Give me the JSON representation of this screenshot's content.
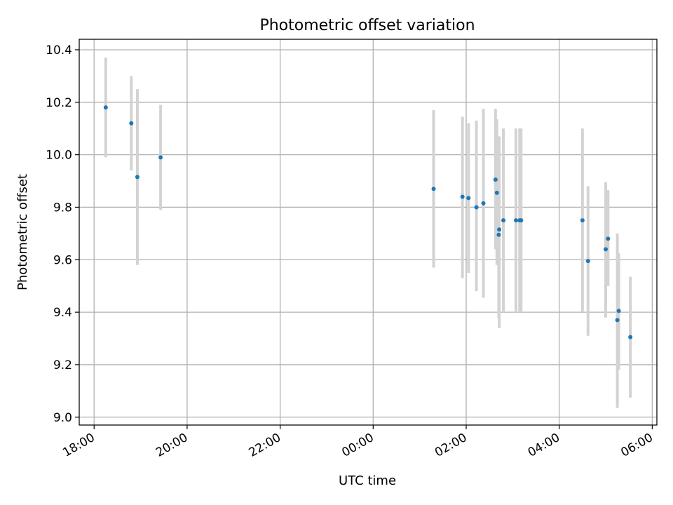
{
  "chart_data": {
    "type": "scatter",
    "title": "Photometric offset variation",
    "xlabel": "UTC time",
    "ylabel": "Photometric offset",
    "x_tick_labels": [
      "18:00",
      "20:00",
      "22:00",
      "00:00",
      "02:00",
      "04:00",
      "06:00"
    ],
    "x_ticks_hours": [
      0,
      2,
      4,
      6,
      8,
      10,
      12
    ],
    "xlim_hours": [
      -0.32,
      12.1
    ],
    "y_ticks": [
      9.0,
      9.2,
      9.4,
      9.6,
      9.8,
      10.0,
      10.2,
      10.4
    ],
    "y_tick_labels": [
      "9.0",
      "9.2",
      "9.4",
      "9.6",
      "9.8",
      "10.0",
      "10.2",
      "10.4"
    ],
    "ylim": [
      8.97,
      10.44
    ],
    "grid": true,
    "errorbar_color": "#d3d3d3",
    "marker_color": "#1f77b4",
    "x_origin_label": "18:00",
    "points": [
      {
        "x": 0.25,
        "y": 10.18,
        "yerr_low": 9.99,
        "yerr_high": 10.37
      },
      {
        "x": 0.8,
        "y": 10.12,
        "yerr_low": 9.94,
        "yerr_high": 10.3
      },
      {
        "x": 0.93,
        "y": 9.915,
        "yerr_low": 9.58,
        "yerr_high": 10.25
      },
      {
        "x": 1.43,
        "y": 9.99,
        "yerr_low": 9.79,
        "yerr_high": 10.19
      },
      {
        "x": 7.3,
        "y": 9.87,
        "yerr_low": 9.57,
        "yerr_high": 10.17
      },
      {
        "x": 7.92,
        "y": 9.84,
        "yerr_low": 9.53,
        "yerr_high": 10.145
      },
      {
        "x": 8.05,
        "y": 9.835,
        "yerr_low": 9.55,
        "yerr_high": 10.12
      },
      {
        "x": 8.22,
        "y": 9.8,
        "yerr_low": 9.48,
        "yerr_high": 10.13
      },
      {
        "x": 8.37,
        "y": 9.815,
        "yerr_low": 9.455,
        "yerr_high": 10.175
      },
      {
        "x": 8.63,
        "y": 9.905,
        "yerr_low": 9.64,
        "yerr_high": 10.175
      },
      {
        "x": 8.66,
        "y": 9.855,
        "yerr_low": 9.58,
        "yerr_high": 10.135
      },
      {
        "x": 8.71,
        "y": 9.715,
        "yerr_low": 9.34,
        "yerr_high": 10.07
      },
      {
        "x": 8.7,
        "y": 9.695,
        "yerr_low": 9.38,
        "yerr_high": 10.02
      },
      {
        "x": 8.8,
        "y": 9.75,
        "yerr_low": 9.4,
        "yerr_high": 10.1
      },
      {
        "x": 9.07,
        "y": 9.75,
        "yerr_low": 9.4,
        "yerr_high": 10.1
      },
      {
        "x": 9.15,
        "y": 9.75,
        "yerr_low": 9.4,
        "yerr_high": 10.1
      },
      {
        "x": 9.18,
        "y": 9.75,
        "yerr_low": 9.4,
        "yerr_high": 10.1
      },
      {
        "x": 10.5,
        "y": 9.75,
        "yerr_low": 9.4,
        "yerr_high": 10.1
      },
      {
        "x": 10.62,
        "y": 9.595,
        "yerr_low": 9.31,
        "yerr_high": 9.88
      },
      {
        "x": 11.0,
        "y": 9.64,
        "yerr_low": 9.38,
        "yerr_high": 9.895
      },
      {
        "x": 11.05,
        "y": 9.68,
        "yerr_low": 9.5,
        "yerr_high": 9.865
      },
      {
        "x": 11.25,
        "y": 9.37,
        "yerr_low": 9.035,
        "yerr_high": 9.7
      },
      {
        "x": 11.28,
        "y": 9.405,
        "yerr_low": 9.18,
        "yerr_high": 9.625
      },
      {
        "x": 11.53,
        "y": 9.305,
        "yerr_low": 9.075,
        "yerr_high": 9.535
      }
    ]
  }
}
